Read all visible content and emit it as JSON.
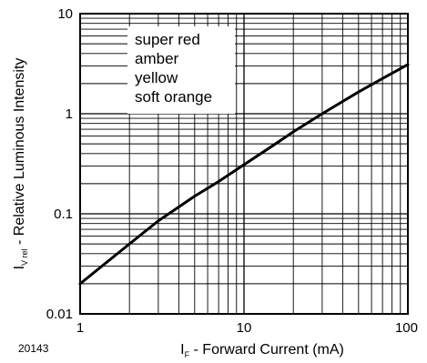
{
  "figure_number": "20143",
  "chart_data": {
    "type": "line",
    "xscale": "log",
    "yscale": "log",
    "xlim": [
      1,
      100
    ],
    "ylim": [
      0.01,
      10
    ],
    "grid": true,
    "xlabel_main": "I",
    "xlabel_sub": "F",
    "xlabel_rest": " - Forward Current (mA)",
    "ylabel_main": "I",
    "ylabel_sub": "V rel",
    "ylabel_rest": " - Relative Luminous Intensity",
    "xticks": [
      {
        "value": 1,
        "label": "1"
      },
      {
        "value": 10,
        "label": "10"
      },
      {
        "value": 100,
        "label": "100"
      }
    ],
    "yticks": [
      {
        "value": 0.01,
        "label": "0.01"
      },
      {
        "value": 0.1,
        "label": "0.1"
      },
      {
        "value": 1,
        "label": "1"
      },
      {
        "value": 10,
        "label": "10"
      }
    ],
    "legend_entries": [
      "super red",
      "amber",
      "yellow",
      "soft orange"
    ],
    "legend_position": "top-left",
    "series": [
      {
        "x": [
          1,
          2,
          3,
          5,
          7,
          10,
          15,
          20,
          30,
          50,
          70,
          100
        ],
        "y": [
          0.02,
          0.05,
          0.085,
          0.15,
          0.21,
          0.31,
          0.48,
          0.66,
          1.0,
          1.65,
          2.25,
          3.1
        ]
      }
    ]
  }
}
